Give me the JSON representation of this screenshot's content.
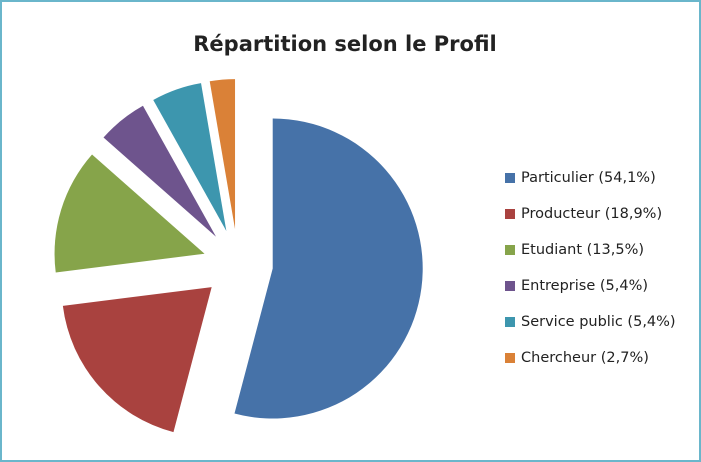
{
  "chart_data": {
    "type": "pie",
    "title": "Répartition selon le Profil",
    "categories": [
      "Particulier (54,1%)",
      "Producteur (18,9%)",
      "Etudiant (13,5%)",
      "Entreprise (5,4%)",
      "Service public (5,4%)",
      "Chercheur (2,7%)"
    ],
    "values": [
      54.1,
      18.9,
      13.5,
      5.4,
      5.4,
      2.7
    ],
    "colors": [
      "#4672a8",
      "#a9423f",
      "#86a44a",
      "#6e548d",
      "#3d96ae",
      "#da8137"
    ],
    "legend": "right"
  }
}
